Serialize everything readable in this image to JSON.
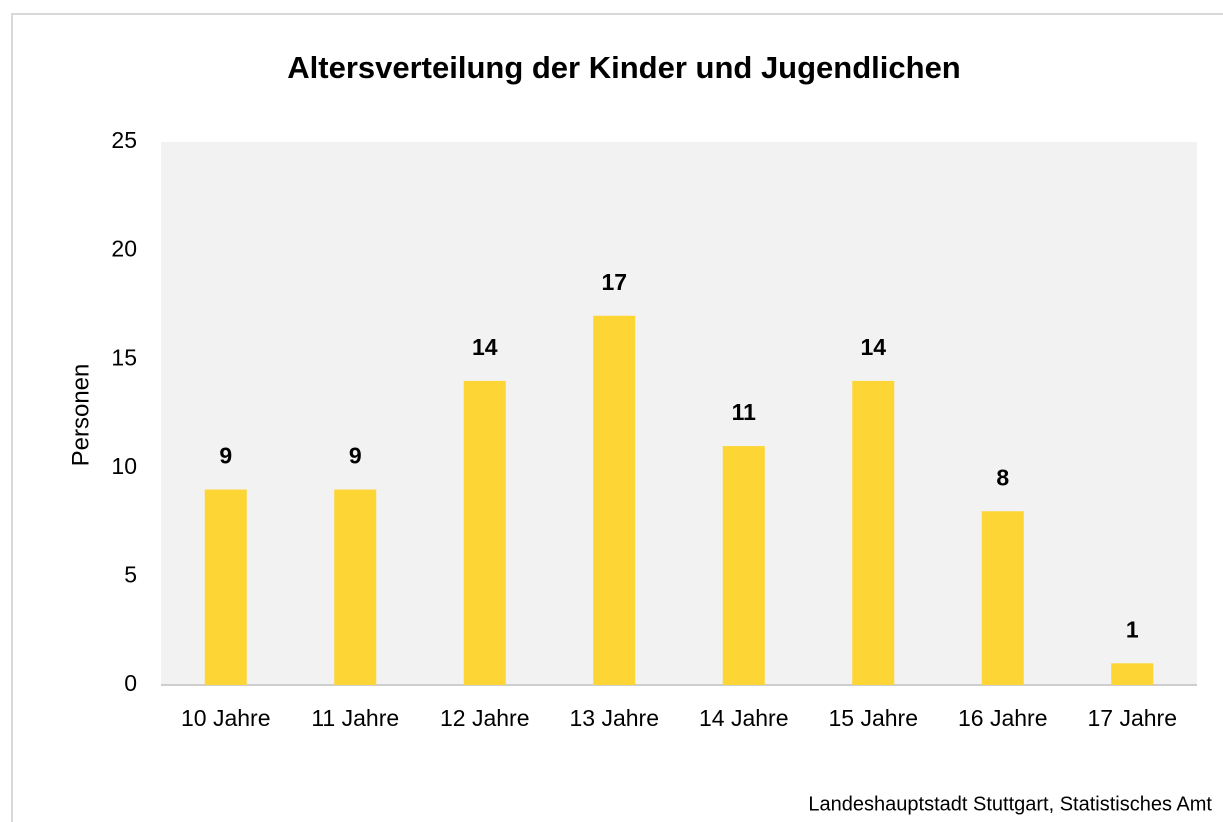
{
  "chart_data": {
    "type": "bar",
    "title": "Altersverteilung der Kinder und Jugendlichen",
    "y_label": "Personen",
    "source": "Landeshauptstadt Stuttgart, Statistisches Amt",
    "categories": [
      "10 Jahre",
      "11 Jahre",
      "12 Jahre",
      "13 Jahre",
      "14 Jahre",
      "15 Jahre",
      "16 Jahre",
      "17 Jahre"
    ],
    "values": [
      9,
      9,
      14,
      17,
      11,
      14,
      8,
      1
    ],
    "color": "#fdd535",
    "ylim": [
      0,
      25
    ],
    "yticks": [
      0,
      5,
      10,
      15,
      20,
      25
    ],
    "grid": false
  }
}
